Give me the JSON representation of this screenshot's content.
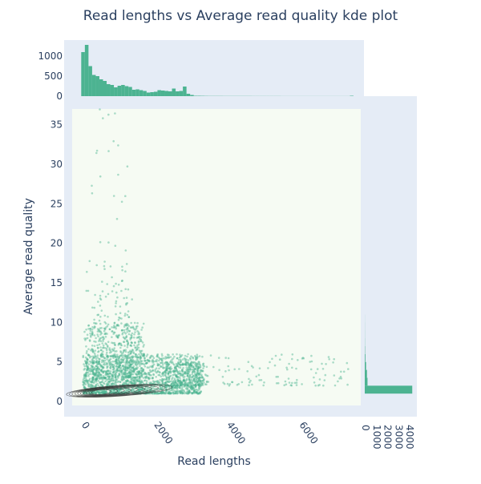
{
  "chart_data": {
    "type": "scatter",
    "title": "Read lengths vs Average read quality kde plot",
    "xlabel": "Read lengths",
    "ylabel": "Average read quality",
    "xlim": [
      -250,
      7700
    ],
    "ylim": [
      -0.5,
      37
    ],
    "x_ticks": [
      0,
      2000,
      4000,
      6000
    ],
    "x_tick_labels": [
      "0",
      "2000",
      "4000",
      "6000"
    ],
    "y_ticks": [
      0,
      5,
      10,
      15,
      20,
      25,
      30,
      35
    ],
    "y_tick_labels": [
      "0",
      "5",
      "10",
      "15",
      "20",
      "25",
      "30",
      "35"
    ],
    "point_color": "#4cb391",
    "plot_background": "#f6fbf3",
    "marginal_background": "#e5ecf6",
    "contour_color": "#333333",
    "scatter_clusters": [
      {
        "x_range": [
          50,
          3300
        ],
        "y_range": [
          1,
          6
        ],
        "count": 1400
      },
      {
        "x_range": [
          50,
          1700
        ],
        "y_range": [
          1,
          10
        ],
        "count": 500
      },
      {
        "x_range": [
          300,
          1400
        ],
        "y_range": [
          3,
          14
        ],
        "count": 220
      },
      {
        "x_range": [
          1100,
          1750
        ],
        "y_range": [
          3,
          10
        ],
        "count": 160
      },
      {
        "x_range": [
          2300,
          3400
        ],
        "y_range": [
          2,
          5
        ],
        "count": 260
      },
      {
        "x_range": [
          3300,
          7400
        ],
        "y_range": [
          2,
          6
        ],
        "count": 120
      },
      {
        "x_range": [
          100,
          1300
        ],
        "y_range": [
          14,
          37
        ],
        "count": 45
      }
    ],
    "kde_contour": {
      "center": [
        550,
        1.2
      ],
      "levels": 10
    },
    "top_histogram": {
      "ylim": [
        0,
        1400
      ],
      "y_ticks": [
        0,
        500,
        1000
      ],
      "y_tick_labels": [
        "0",
        "500",
        "1000"
      ],
      "bin_width": 100,
      "bin_start": 0,
      "counts": [
        1100,
        1280,
        750,
        530,
        500,
        420,
        380,
        300,
        280,
        220,
        260,
        280,
        250,
        230,
        160,
        170,
        150,
        130,
        90,
        100,
        110,
        150,
        140,
        130,
        120,
        190,
        120,
        130,
        240,
        60,
        30,
        10,
        10,
        8,
        6,
        5,
        5,
        5,
        5,
        4,
        4,
        4,
        4,
        4,
        4,
        4,
        4,
        3,
        3,
        3,
        3,
        3,
        3,
        3,
        3,
        2,
        2,
        2,
        2,
        2,
        2,
        2,
        2,
        2,
        2,
        2,
        2,
        2,
        2,
        2,
        2,
        2,
        2,
        2,
        10
      ]
    },
    "right_histogram": {
      "x_ticks": [
        0,
        1000,
        2000,
        3000,
        4000
      ],
      "x_tick_labels": [
        "0",
        "1000",
        "2000",
        "3000",
        "4000"
      ],
      "xlim": [
        0,
        4500
      ],
      "bins": [
        {
          "y0": 1,
          "y1": 2,
          "count": 4300
        },
        {
          "y0": 2,
          "y1": 3,
          "count": 250
        },
        {
          "y0": 3,
          "y1": 4,
          "count": 200
        },
        {
          "y0": 4,
          "y1": 5,
          "count": 120
        },
        {
          "y0": 5,
          "y1": 6,
          "count": 60
        },
        {
          "y0": 6,
          "y1": 7,
          "count": 30
        },
        {
          "y0": 7,
          "y1": 8,
          "count": 15
        },
        {
          "y0": 8,
          "y1": 9,
          "count": 10
        },
        {
          "y0": 9,
          "y1": 10,
          "count": 8
        },
        {
          "y0": 10,
          "y1": 11,
          "count": 5
        }
      ]
    }
  }
}
